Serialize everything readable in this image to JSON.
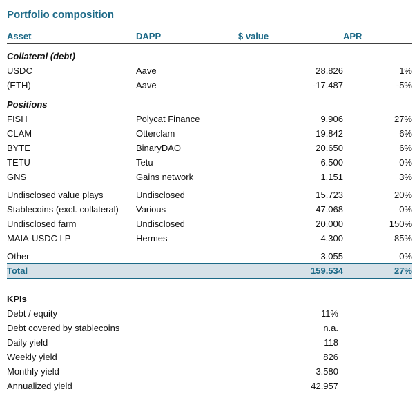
{
  "title": "Portfolio composition",
  "table": {
    "headers": {
      "asset": "Asset",
      "dapp": "DAPP",
      "value": "$ value",
      "apr": "APR"
    },
    "sections": [
      {
        "label": "Collateral (debt)"
      },
      {
        "label": "Positions"
      }
    ],
    "rows": [
      {
        "asset": "USDC",
        "dapp": "Aave",
        "value": "28.826",
        "apr": "1%"
      },
      {
        "asset": "(ETH)",
        "dapp": "Aave",
        "value": "-17.487",
        "apr": "-5%"
      },
      {
        "asset": "FISH",
        "dapp": "Polycat Finance",
        "value": "9.906",
        "apr": "27%"
      },
      {
        "asset": "CLAM",
        "dapp": "Otterclam",
        "value": "19.842",
        "apr": "6%"
      },
      {
        "asset": "BYTE",
        "dapp": "BinaryDAO",
        "value": "20.650",
        "apr": "6%"
      },
      {
        "asset": "TETU",
        "dapp": "Tetu",
        "value": "6.500",
        "apr": "0%"
      },
      {
        "asset": "GNS",
        "dapp": "Gains network",
        "value": "1.151",
        "apr": "3%"
      },
      {
        "asset": "Undisclosed value plays",
        "dapp": "Undisclosed",
        "value": "15.723",
        "apr": "20%"
      },
      {
        "asset": "Stablecoins (excl. collateral)",
        "dapp": "Various",
        "value": "47.068",
        "apr": "0%"
      },
      {
        "asset": "Undisclosed farm",
        "dapp": "Undisclosed",
        "value": "20.000",
        "apr": "150%"
      },
      {
        "asset": "MAIA-USDC LP",
        "dapp": "Hermes",
        "value": "4.300",
        "apr": "85%"
      },
      {
        "asset": "Other",
        "dapp": "",
        "value": "3.055",
        "apr": "0%"
      }
    ],
    "total": {
      "label": "Total",
      "value": "159.534",
      "apr": "27%"
    }
  },
  "kpis": {
    "title": "KPIs",
    "items": [
      {
        "label": "Debt / equity",
        "value": "11%"
      },
      {
        "label": "Debt covered by stablecoins",
        "value": "n.a."
      },
      {
        "label": "Daily yield",
        "value": "118"
      },
      {
        "label": "Weekly yield",
        "value": "826"
      },
      {
        "label": "Monthly yield",
        "value": "3.580"
      },
      {
        "label": "Annualized yield",
        "value": "42.957"
      }
    ]
  },
  "colors": {
    "accent": "#1C6987",
    "total_row_bg": "#D6E1E8",
    "header_rule": "#404040"
  }
}
